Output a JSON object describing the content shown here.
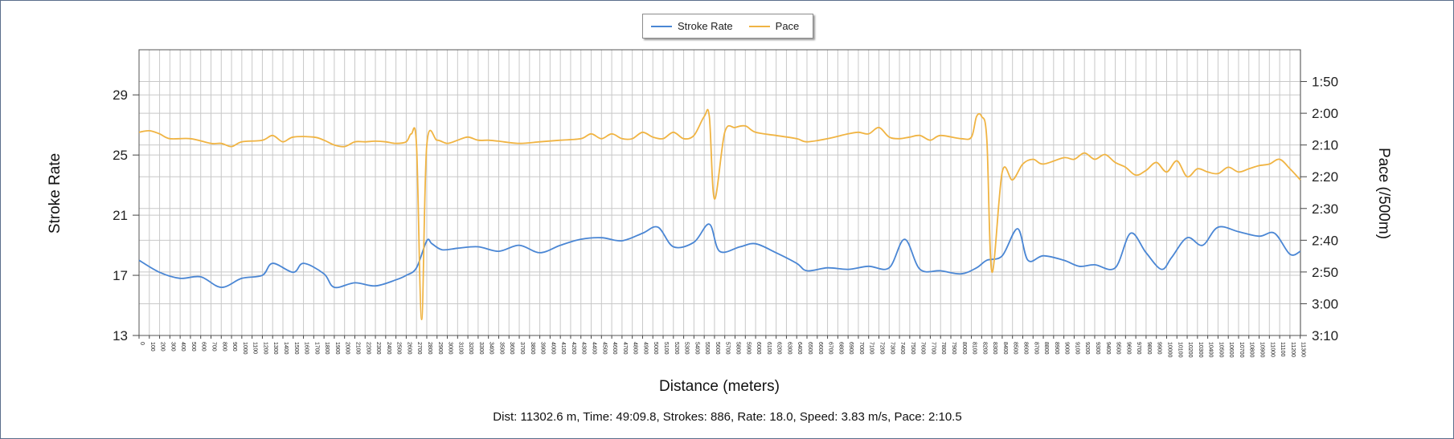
{
  "chart_data": {
    "type": "line",
    "xlabel": "Distance (meters)",
    "ylabel": "Stroke Rate",
    "ylabel_right": "Pace (/500m)",
    "x_range": [
      0,
      11302.6
    ],
    "y_left": {
      "range": [
        13,
        32
      ],
      "ticks": [
        13,
        17,
        21,
        25,
        29
      ]
    },
    "y_right": {
      "range_seconds": [
        100,
        190
      ],
      "reversed": true,
      "ticks": [
        {
          "value": 110,
          "label": "1:50"
        },
        {
          "value": 120,
          "label": "2:00"
        },
        {
          "value": 130,
          "label": "2:10"
        },
        {
          "value": 140,
          "label": "2:20"
        },
        {
          "value": 150,
          "label": "2:30"
        },
        {
          "value": 160,
          "label": "2:40"
        },
        {
          "value": 170,
          "label": "2:50"
        },
        {
          "value": 180,
          "label": "3:00"
        },
        {
          "value": 190,
          "label": "3:10"
        }
      ]
    },
    "x_ticks_step": 100,
    "x_ticks_max": 11300,
    "grid": true,
    "legend_position": "top-center",
    "series": [
      {
        "name": "Stroke Rate",
        "axis": "left",
        "color": "#4a86d4",
        "x": [
          0,
          200,
          400,
          600,
          800,
          1000,
          1200,
          1300,
          1500,
          1600,
          1800,
          1900,
          2100,
          2300,
          2500,
          2600,
          2700,
          2800,
          2850,
          2950,
          3100,
          3300,
          3500,
          3700,
          3900,
          4100,
          4300,
          4500,
          4700,
          4900,
          5050,
          5200,
          5400,
          5550,
          5650,
          5850,
          6000,
          6200,
          6400,
          6500,
          6700,
          6900,
          7100,
          7300,
          7450,
          7600,
          7800,
          8000,
          8150,
          8250,
          8400,
          8550,
          8650,
          8800,
          9000,
          9150,
          9300,
          9500,
          9650,
          9800,
          9950,
          10050,
          10200,
          10350,
          10500,
          10700,
          10900,
          11050,
          11200,
          11302
        ],
        "y": [
          18.0,
          17.2,
          16.8,
          16.9,
          16.2,
          16.8,
          17.0,
          17.8,
          17.2,
          17.8,
          17.1,
          16.2,
          16.5,
          16.3,
          16.7,
          17.0,
          17.5,
          19.3,
          19.1,
          18.7,
          18.8,
          18.9,
          18.6,
          19.0,
          18.5,
          19.0,
          19.4,
          19.5,
          19.3,
          19.8,
          20.2,
          18.9,
          19.2,
          20.4,
          18.6,
          18.9,
          19.1,
          18.5,
          17.8,
          17.3,
          17.5,
          17.4,
          17.6,
          17.5,
          19.4,
          17.4,
          17.3,
          17.1,
          17.5,
          18.0,
          18.3,
          20.1,
          18.0,
          18.3,
          18.0,
          17.6,
          17.7,
          17.5,
          19.8,
          18.5,
          17.4,
          18.2,
          19.5,
          19.0,
          20.2,
          19.9,
          19.6,
          19.8,
          18.4,
          18.6
        ]
      },
      {
        "name": "Pace",
        "axis": "right",
        "color": "#f0b443",
        "x": [
          0,
          100,
          200,
          300,
          500,
          700,
          800,
          900,
          1000,
          1200,
          1300,
          1400,
          1500,
          1700,
          1800,
          1900,
          2000,
          2100,
          2200,
          2300,
          2400,
          2500,
          2600,
          2650,
          2700,
          2750,
          2800,
          2900,
          3000,
          3100,
          3200,
          3300,
          3400,
          3500,
          3700,
          3900,
          4100,
          4300,
          4400,
          4500,
          4600,
          4700,
          4800,
          4900,
          5000,
          5100,
          5200,
          5300,
          5400,
          5500,
          5550,
          5600,
          5700,
          5800,
          5900,
          6000,
          6200,
          6400,
          6500,
          6700,
          6900,
          7000,
          7100,
          7200,
          7300,
          7400,
          7500,
          7600,
          7700,
          7800,
          8000,
          8100,
          8150,
          8200,
          8250,
          8300,
          8400,
          8500,
          8600,
          8700,
          8800,
          9000,
          9100,
          9200,
          9300,
          9400,
          9500,
          9600,
          9700,
          9800,
          9900,
          10000,
          10100,
          10200,
          10300,
          10400,
          10500,
          10600,
          10700,
          10800,
          10900,
          11000,
          11100,
          11200,
          11302
        ],
        "y": [
          126.0,
          125.5,
          126.5,
          128.0,
          128.0,
          129.5,
          129.5,
          130.5,
          129.0,
          128.5,
          127.0,
          129.0,
          127.5,
          127.5,
          128.5,
          130.0,
          130.5,
          129.0,
          129.0,
          128.8,
          129.0,
          129.5,
          129.0,
          126.5,
          130.0,
          185.0,
          130.0,
          128.5,
          129.5,
          128.5,
          127.5,
          128.5,
          128.5,
          128.8,
          129.5,
          129.0,
          128.5,
          128.0,
          126.5,
          128.0,
          126.5,
          128.0,
          128.0,
          126.0,
          127.5,
          128.0,
          126.0,
          128.0,
          127.0,
          121.0,
          121.0,
          147.0,
          126.0,
          124.5,
          124.0,
          126.0,
          127.0,
          128.0,
          129.0,
          128.0,
          126.5,
          126.0,
          126.5,
          124.5,
          127.5,
          128.0,
          127.5,
          127.0,
          128.5,
          127.0,
          128.0,
          127.5,
          121.0,
          121.0,
          128.0,
          170.0,
          138.5,
          141.0,
          136.0,
          134.5,
          136.0,
          134.0,
          134.5,
          132.5,
          134.5,
          133.0,
          135.5,
          137.0,
          139.5,
          138.0,
          135.5,
          138.5,
          135.0,
          140.0,
          137.5,
          138.5,
          139.0,
          137.0,
          138.5,
          137.5,
          136.5,
          136.0,
          134.5,
          137.5,
          141.0
        ]
      }
    ]
  },
  "footer_text": "Dist: 11302.6 m, Time: 49:09.8, Strokes: 886, Rate: 18.0, Speed: 3.83 m/s, Pace: 2:10.5"
}
